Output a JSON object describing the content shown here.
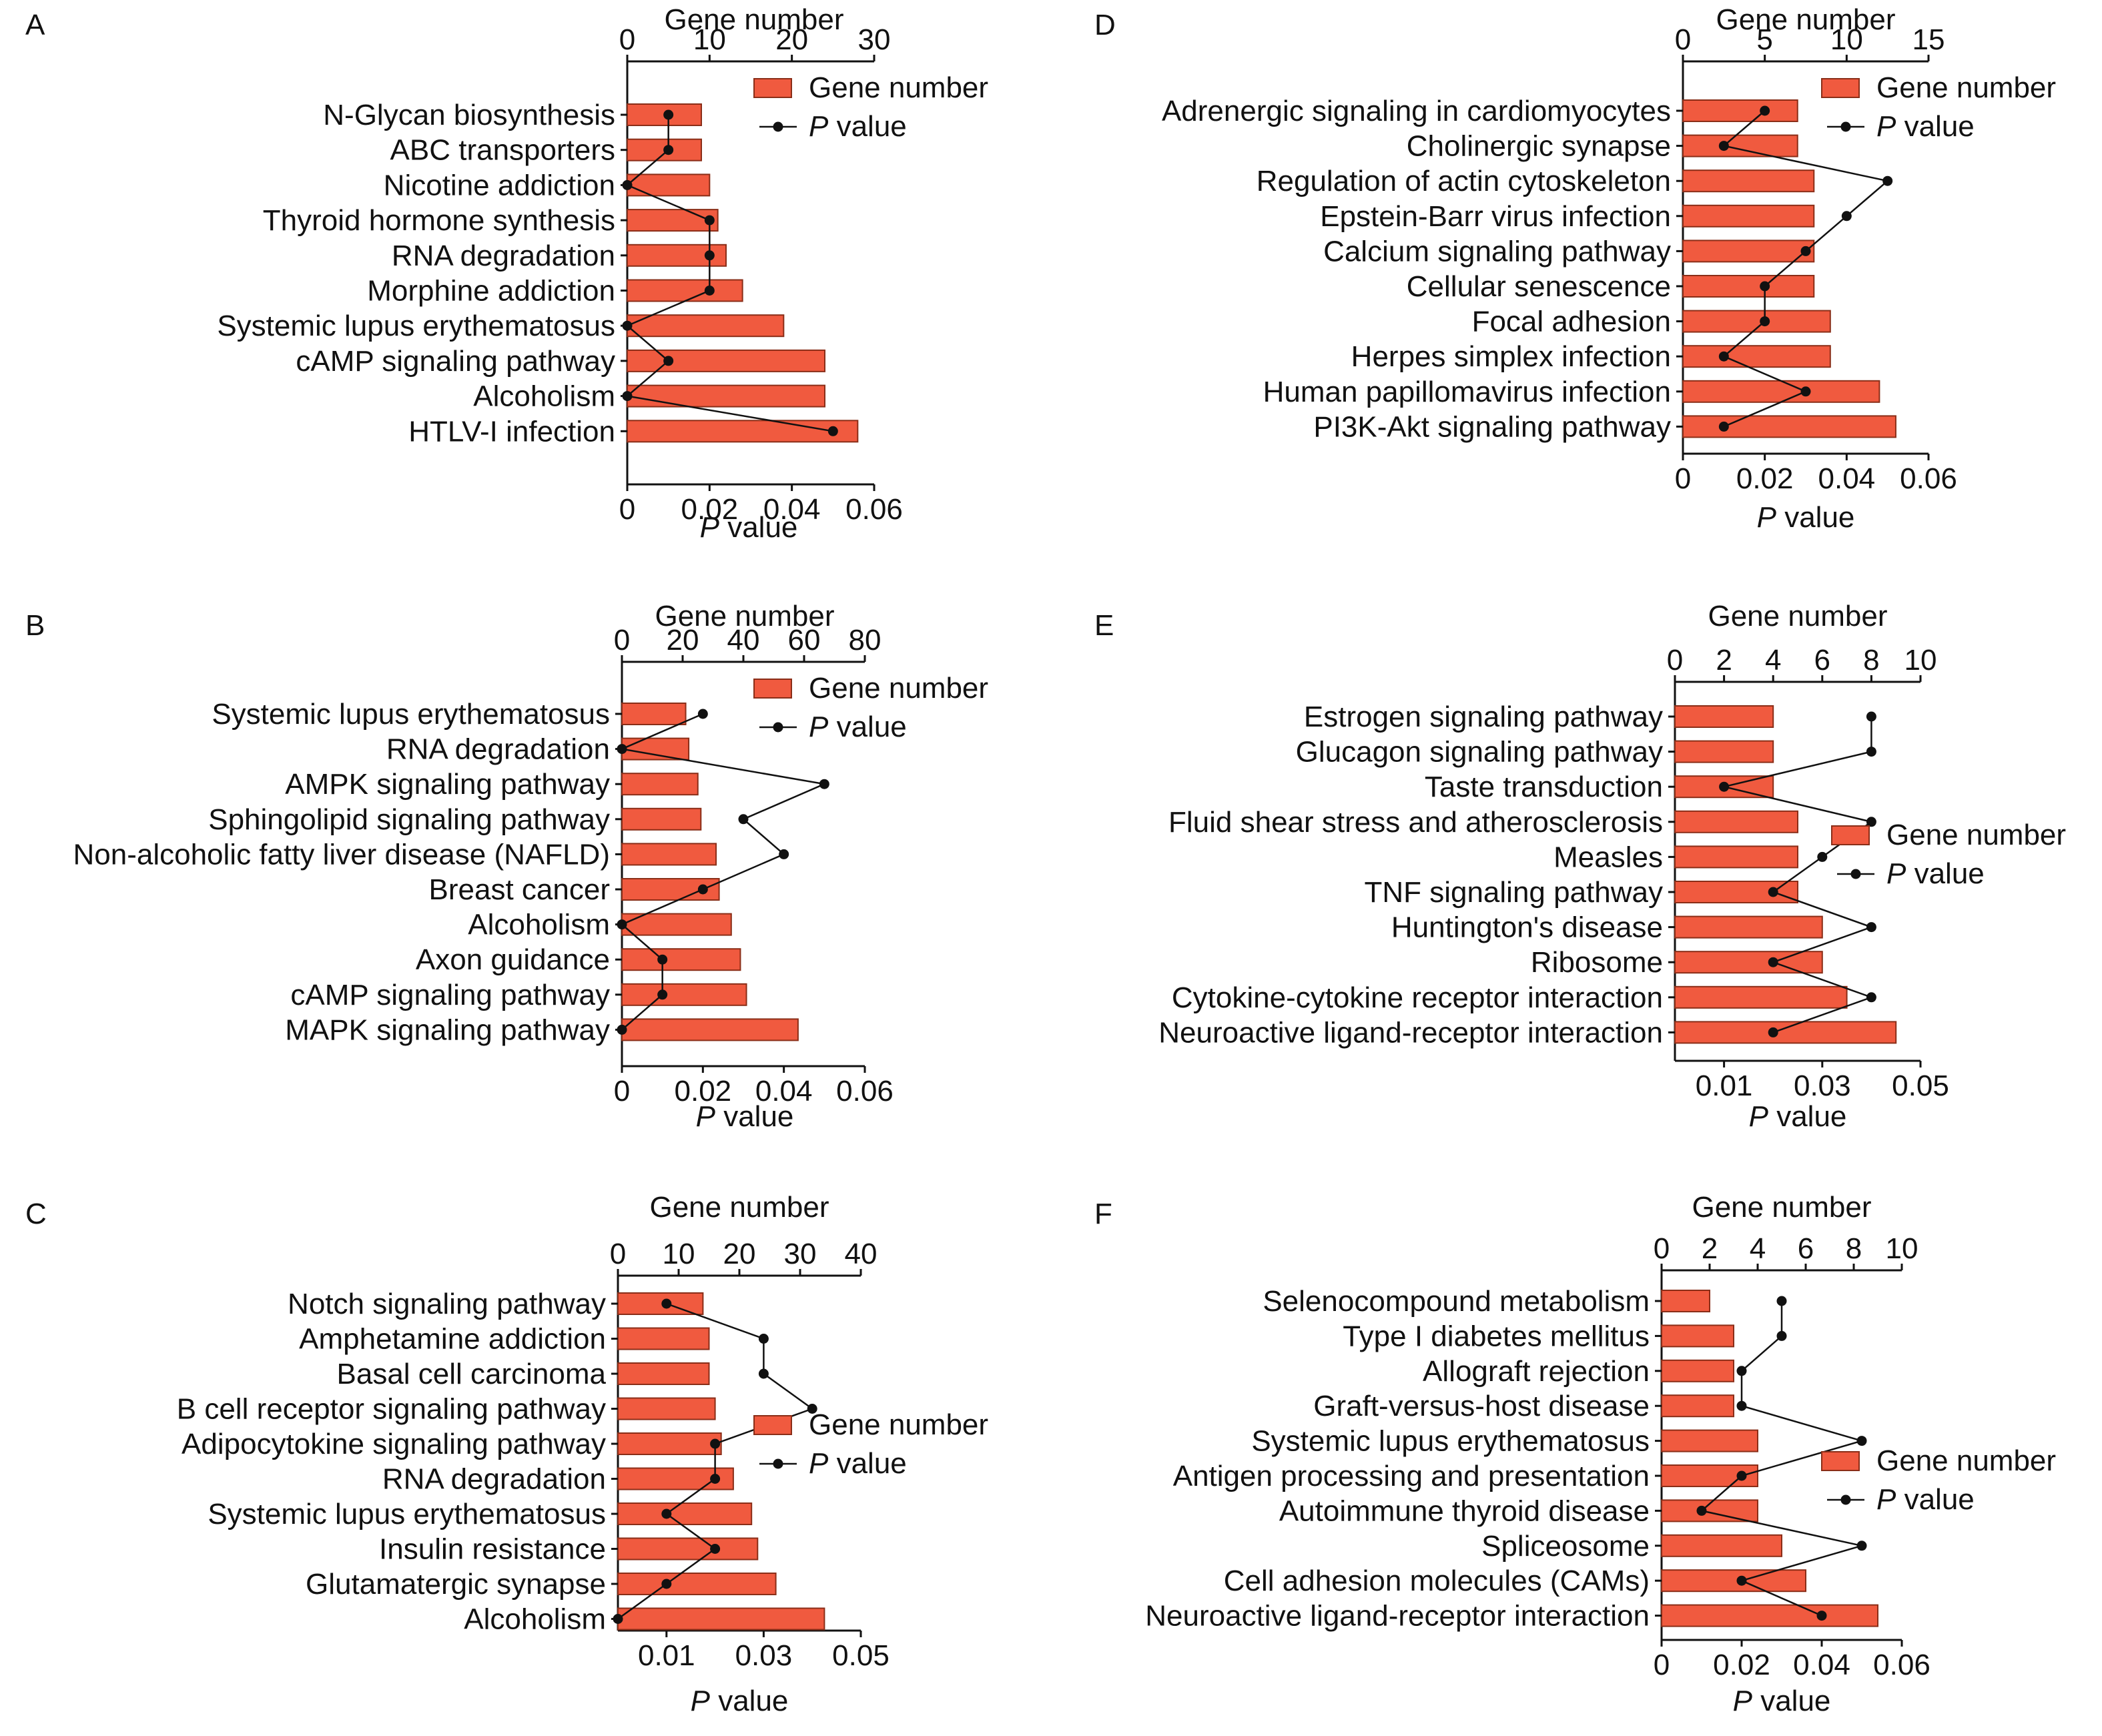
{
  "colors": {
    "bar_fill": "#f05a3f",
    "bar_stroke": "#8a2e18",
    "line": "#111111",
    "point": "#111111",
    "axis": "#111111"
  },
  "chart_data": [
    {
      "type": "bar",
      "panel_label": "A",
      "top_axis_label": "Gene number",
      "bottom_axis_label_italic": "P",
      "bottom_axis_label_rest": " value",
      "legend": {
        "bar": "Gene number",
        "line_italic": "P",
        "line_rest": " value",
        "position": "top-right"
      },
      "gene_axis": {
        "min": 0,
        "max": 30,
        "ticks": [
          "0",
          "10",
          "20",
          "30"
        ]
      },
      "p_axis": {
        "min": 0,
        "max": 0.06,
        "ticks": [
          "0",
          "0.02",
          "0.04",
          "0.06"
        ]
      },
      "categories": [
        "N-Glycan biosynthesis",
        "ABC transporters",
        "Nicotine addiction",
        "Thyroid hormone synthesis",
        "RNA degradation",
        "Morphine addiction",
        "Systemic lupus erythematosus",
        "cAMP signaling pathway",
        "Alcoholism",
        "HTLV-I infection"
      ],
      "gene_number": [
        9,
        9,
        10,
        11,
        12,
        14,
        19,
        24,
        24,
        28
      ],
      "p_value": [
        0.01,
        0.01,
        0,
        0.02,
        0.02,
        0.02,
        0,
        0.01,
        0,
        0.05
      ]
    },
    {
      "type": "bar",
      "panel_label": "B",
      "top_axis_label": "Gene number",
      "bottom_axis_label_italic": "P",
      "bottom_axis_label_rest": " value",
      "legend": {
        "bar": "Gene number",
        "line_italic": "P",
        "line_rest": " value",
        "position": "top-right"
      },
      "gene_axis": {
        "min": 0,
        "max": 80,
        "ticks": [
          "0",
          "20",
          "40",
          "60",
          "80"
        ]
      },
      "p_axis": {
        "min": 0,
        "max": 0.06,
        "ticks": [
          "0",
          "0.02",
          "0.04",
          "0.06"
        ]
      },
      "categories": [
        "Systemic lupus erythematosus",
        "RNA degradation",
        "AMPK signaling pathway",
        "Sphingolipid signaling pathway",
        "Non-alcoholic fatty liver disease (NAFLD)",
        "Breast cancer",
        "Alcoholism",
        "Axon guidance",
        "cAMP signaling pathway",
        "MAPK signaling pathway"
      ],
      "gene_number": [
        21,
        22,
        25,
        26,
        31,
        32,
        36,
        39,
        41,
        58
      ],
      "p_value": [
        0.02,
        0,
        0.05,
        0.03,
        0.04,
        0.02,
        0,
        0.01,
        0.01,
        0
      ]
    },
    {
      "type": "bar",
      "panel_label": "C",
      "top_axis_label": "Gene number",
      "bottom_axis_label_italic": "P",
      "bottom_axis_label_rest": " value",
      "legend": {
        "bar": "Gene number",
        "line_italic": "P",
        "line_rest": " value",
        "position": "right"
      },
      "gene_axis": {
        "min": 0,
        "max": 40,
        "ticks": [
          "0",
          "10",
          "20",
          "30",
          "40"
        ]
      },
      "p_axis": {
        "min": 0,
        "max": 0.05,
        "ticks": [
          "0.01",
          "0.03",
          "0.05"
        ]
      },
      "categories": [
        "Notch signaling pathway",
        "Amphetamine addiction",
        "Basal cell carcinoma",
        "B cell receptor signaling pathway",
        "Adipocytokine signaling pathway",
        "RNA degradation",
        "Systemic lupus erythematosus",
        "Insulin resistance",
        "Glutamatergic synapse",
        "Alcoholism"
      ],
      "gene_number": [
        14,
        15,
        15,
        16,
        17,
        19,
        22,
        23,
        26,
        34
      ],
      "p_value": [
        0.01,
        0.03,
        0.03,
        0.04,
        0.02,
        0.02,
        0.01,
        0.02,
        0.01,
        0
      ]
    },
    {
      "type": "bar",
      "panel_label": "D",
      "top_axis_label": "Gene number",
      "bottom_axis_label_italic": "P",
      "bottom_axis_label_rest": " value",
      "legend": {
        "bar": "Gene number",
        "line_italic": "P",
        "line_rest": " value",
        "position": "top-right"
      },
      "gene_axis": {
        "min": 0,
        "max": 15,
        "ticks": [
          "0",
          "5",
          "10",
          "15"
        ]
      },
      "p_axis": {
        "min": 0,
        "max": 0.06,
        "ticks": [
          "0",
          "0.02",
          "0.04",
          "0.06"
        ]
      },
      "categories": [
        "Adrenergic signaling in cardiomyocytes",
        "Cholinergic synapse",
        "Regulation of actin cytoskeleton",
        "Epstein-Barr virus infection",
        "Calcium signaling pathway",
        "Cellular senescence",
        "Focal adhesion",
        "Herpes simplex infection",
        "Human papillomavirus infection",
        "PI3K-Akt signaling pathway"
      ],
      "gene_number": [
        7,
        7,
        8,
        8,
        8,
        8,
        9,
        9,
        12,
        13
      ],
      "p_value": [
        0.02,
        0.01,
        0.05,
        0.04,
        0.03,
        0.02,
        0.02,
        0.01,
        0.03,
        0.01
      ]
    },
    {
      "type": "bar",
      "panel_label": "E",
      "top_axis_label": "Gene number",
      "bottom_axis_label_italic": "P",
      "bottom_axis_label_rest": " value",
      "legend": {
        "bar": "Gene number",
        "line_italic": "P",
        "line_rest": " value",
        "position": "right"
      },
      "gene_axis": {
        "min": 0,
        "max": 10,
        "ticks": [
          "0",
          "2",
          "4",
          "6",
          "8",
          "10"
        ]
      },
      "p_axis": {
        "min": 0,
        "max": 0.05,
        "ticks": [
          "0.01",
          "0.03",
          "0.05"
        ]
      },
      "categories": [
        "Estrogen signaling pathway",
        "Glucagon signaling pathway",
        "Taste transduction",
        "Fluid shear stress and atherosclerosis",
        "Measles",
        "TNF signaling pathway",
        "Huntington's disease",
        "Ribosome",
        "Cytokine-cytokine receptor interaction",
        "Neuroactive ligand-receptor interaction"
      ],
      "gene_number": [
        4,
        4,
        4,
        5,
        5,
        5,
        6,
        6,
        7,
        9
      ],
      "p_value": [
        0.04,
        0.04,
        0.01,
        0.04,
        0.03,
        0.02,
        0.04,
        0.02,
        0.04,
        0.02
      ]
    },
    {
      "type": "bar",
      "panel_label": "F",
      "top_axis_label": "Gene number",
      "bottom_axis_label_italic": "P",
      "bottom_axis_label_rest": " value",
      "legend": {
        "bar": "Gene number",
        "line_italic": "P",
        "line_rest": " value",
        "position": "right"
      },
      "gene_axis": {
        "min": 0,
        "max": 10,
        "ticks": [
          "0",
          "2",
          "4",
          "6",
          "8",
          "10"
        ]
      },
      "p_axis": {
        "min": 0,
        "max": 0.06,
        "ticks": [
          "0",
          "0.02",
          "0.04",
          "0.06"
        ]
      },
      "categories": [
        "Selenocompound metabolism",
        "Type I diabetes mellitus",
        "Allograft rejection",
        "Graft-versus-host disease",
        "Systemic lupus erythematosus",
        "Antigen processing and presentation",
        "Autoimmune thyroid disease",
        "Spliceosome",
        "Cell adhesion molecules (CAMs)",
        "Neuroactive ligand-receptor interaction"
      ],
      "gene_number": [
        2,
        3,
        3,
        3,
        4,
        4,
        4,
        5,
        6,
        9
      ],
      "p_value": [
        0.03,
        0.03,
        0.02,
        0.02,
        0.05,
        0.02,
        0.01,
        0.05,
        0.02,
        0.04
      ]
    }
  ]
}
